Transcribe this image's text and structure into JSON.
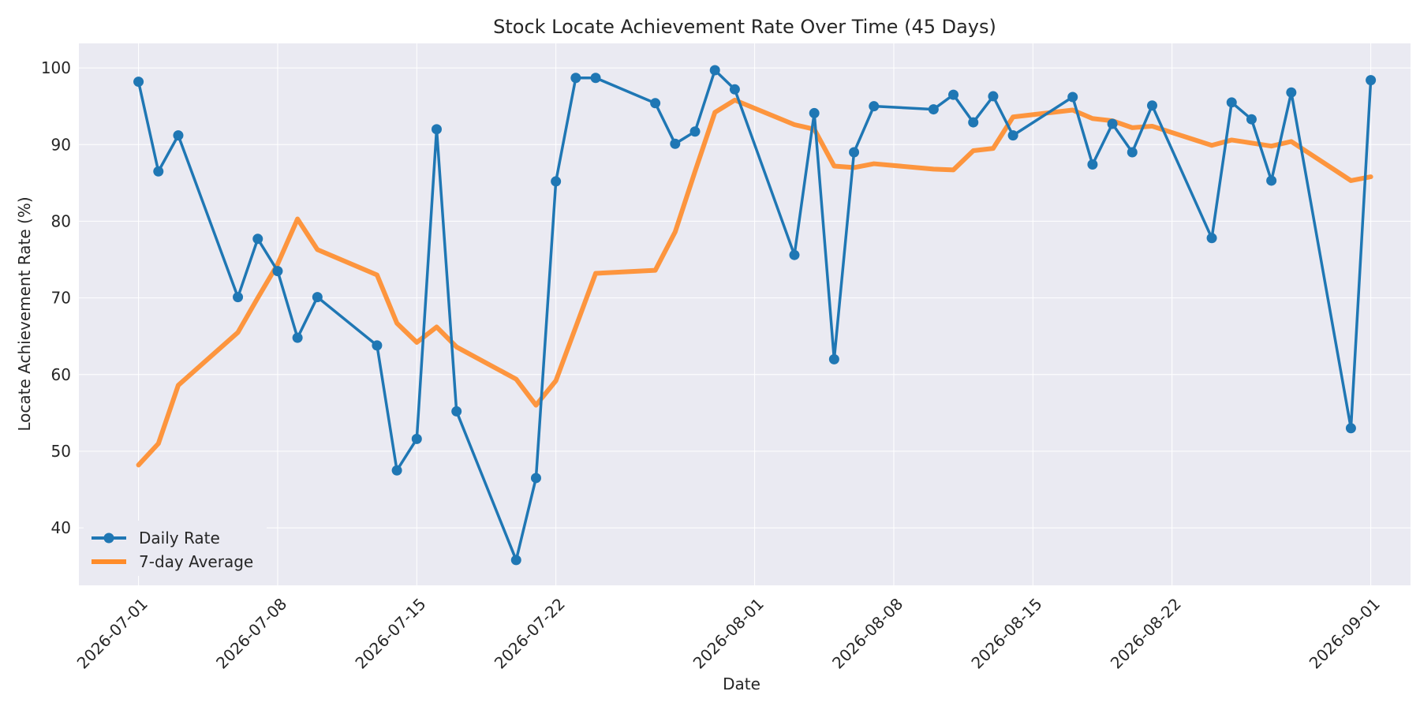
{
  "chart_data": {
    "type": "line",
    "title": "Stock Locate Achievement Rate Over Time (45 Days)",
    "xlabel": "Date",
    "ylabel": "Locate Achievement Rate (%)",
    "x_tick_labels": [
      "2026-07-01",
      "2026-07-08",
      "2026-07-15",
      "2026-07-22",
      "2026-08-01",
      "2026-08-08",
      "2026-08-15",
      "2026-08-22",
      "2026-09-01"
    ],
    "y_ticks": [
      40,
      50,
      60,
      70,
      80,
      90,
      100
    ],
    "xlim": [
      "2026-06-28",
      "2026-09-03"
    ],
    "ylim": [
      32.5,
      103.2
    ],
    "grid": true,
    "legend_position": "lower-left",
    "x": [
      "2026-07-01",
      "2026-07-02",
      "2026-07-03",
      "2026-07-06",
      "2026-07-07",
      "2026-07-08",
      "2026-07-09",
      "2026-07-10",
      "2026-07-13",
      "2026-07-14",
      "2026-07-15",
      "2026-07-16",
      "2026-07-17",
      "2026-07-20",
      "2026-07-21",
      "2026-07-22",
      "2026-07-23",
      "2026-07-24",
      "2026-07-27",
      "2026-07-28",
      "2026-07-29",
      "2026-07-30",
      "2026-07-31",
      "2026-08-03",
      "2026-08-04",
      "2026-08-05",
      "2026-08-06",
      "2026-08-07",
      "2026-08-10",
      "2026-08-11",
      "2026-08-12",
      "2026-08-13",
      "2026-08-14",
      "2026-08-17",
      "2026-08-18",
      "2026-08-19",
      "2026-08-20",
      "2026-08-21",
      "2026-08-24",
      "2026-08-25",
      "2026-08-26",
      "2026-08-27",
      "2026-08-28",
      "2026-08-31",
      "2026-09-01"
    ],
    "series": [
      {
        "name": "Daily Rate",
        "color": "#1f77b4",
        "marker": "circle",
        "values": [
          98.2,
          86.5,
          91.2,
          70.1,
          77.7,
          73.5,
          64.8,
          70.1,
          63.8,
          47.5,
          51.6,
          92.0,
          55.2,
          35.8,
          46.5,
          85.2,
          98.7,
          98.7,
          95.4,
          90.1,
          91.7,
          99.7,
          97.2,
          75.6,
          94.1,
          62.0,
          89.0,
          95.0,
          94.6,
          96.5,
          92.9,
          96.3,
          91.2,
          96.2,
          87.4,
          92.7,
          89.0,
          95.1,
          77.8,
          95.5,
          93.3,
          85.3,
          96.8,
          53.0,
          98.4
        ]
      },
      {
        "name": "7-day Average",
        "color": "#ff8c2a",
        "values": [
          48.2,
          51.0,
          58.6,
          65.5,
          70.0,
          74.4,
          80.3,
          76.3,
          73.0,
          66.7,
          64.2,
          66.2,
          63.6,
          59.4,
          56.0,
          59.2,
          66.2,
          73.2,
          73.6,
          78.6,
          86.5,
          94.2,
          95.8,
          92.6,
          92.0,
          87.2,
          87.0,
          87.5,
          86.8,
          86.7,
          89.2,
          89.5,
          93.6,
          94.5,
          93.4,
          93.1,
          92.2,
          92.4,
          89.9,
          90.6,
          90.2,
          89.8,
          90.4,
          85.3,
          85.8
        ]
      }
    ]
  }
}
